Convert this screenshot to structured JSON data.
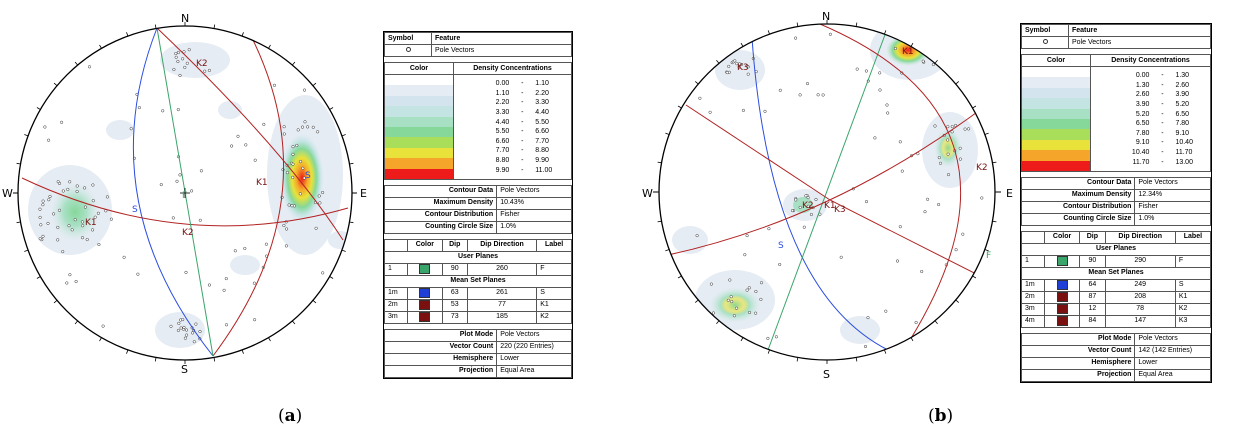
{
  "panels": [
    {
      "id": "a",
      "caption": "a",
      "compass": {
        "n": "N",
        "s": "S",
        "e": "E",
        "w": "W"
      },
      "plane_labels": [
        {
          "text": "K2"
        },
        {
          "text": "K1"
        },
        {
          "text": "S"
        },
        {
          "text": "F"
        },
        {
          "text": "K2"
        },
        {
          "text": "K1"
        },
        {
          "text": "S"
        }
      ],
      "legend": {
        "symbol_header": "Symbol",
        "feature_header": "Feature",
        "feature": "Pole Vectors",
        "color_header": "Color",
        "density_header": "Density Concentrations",
        "density_ranges": [
          [
            "0.00",
            "-",
            "1.10"
          ],
          [
            "1.10",
            "-",
            "2.20"
          ],
          [
            "2.20",
            "-",
            "3.30"
          ],
          [
            "3.30",
            "-",
            "4.40"
          ],
          [
            "4.40",
            "-",
            "5.50"
          ],
          [
            "5.50",
            "-",
            "6.60"
          ],
          [
            "6.60",
            "-",
            "7.70"
          ],
          [
            "7.70",
            "-",
            "8.80"
          ],
          [
            "8.80",
            "-",
            "9.90"
          ],
          [
            "9.90",
            "-",
            "11.00"
          ]
        ],
        "density_colors": [
          "#ffffff",
          "#e6ecf4",
          "#d3e4ee",
          "#c4e4e4",
          "#a8e0c4",
          "#86d89a",
          "#a8de5a",
          "#e8e23a",
          "#f5a62a",
          "#ee1b1b"
        ],
        "info1": [
          {
            "label": "Contour Data",
            "value": "Pole Vectors"
          },
          {
            "label": "Maximum Density",
            "value": "10.43%"
          },
          {
            "label": "Contour Distribution",
            "value": "Fisher"
          },
          {
            "label": "Counting Circle Size",
            "value": "1.0%"
          }
        ],
        "planes_headers": [
          "Color",
          "Dip",
          "Dip Direction",
          "Label"
        ],
        "user_planes_title": "User Planes",
        "user_planes": [
          {
            "id": "1",
            "color": "#3aa56a",
            "dip": "90",
            "dipdir": "260",
            "label": "F"
          }
        ],
        "mean_title": "Mean Set Planes",
        "mean_planes": [
          {
            "id": "1m",
            "color": "#1f3fd6",
            "dip": "63",
            "dipdir": "261",
            "label": "S"
          },
          {
            "id": "2m",
            "color": "#7a1010",
            "dip": "53",
            "dipdir": "77",
            "label": "K1"
          },
          {
            "id": "3m",
            "color": "#7a1010",
            "dip": "73",
            "dipdir": "185",
            "label": "K2"
          }
        ],
        "info2": [
          {
            "label": "Plot Mode",
            "value": "Pole Vectors"
          },
          {
            "label": "Vector Count",
            "value": "220 (220 Entries)"
          },
          {
            "label": "Hemisphere",
            "value": "Lower"
          },
          {
            "label": "Projection",
            "value": "Equal Area"
          }
        ]
      }
    },
    {
      "id": "b",
      "caption": "b",
      "compass": {
        "n": "N",
        "s": "S",
        "e": "E",
        "w": "W"
      },
      "plane_labels": [
        {
          "text": "K3"
        },
        {
          "text": "K1"
        },
        {
          "text": "K2"
        },
        {
          "text": "K2"
        },
        {
          "text": "K1"
        },
        {
          "text": "K3"
        },
        {
          "text": "S"
        },
        {
          "text": "F"
        }
      ],
      "legend": {
        "symbol_header": "Symbol",
        "feature_header": "Feature",
        "feature": "Pole Vectors",
        "color_header": "Color",
        "density_header": "Density Concentrations",
        "density_ranges": [
          [
            "0.00",
            "-",
            "1.30"
          ],
          [
            "1.30",
            "-",
            "2.60"
          ],
          [
            "2.60",
            "-",
            "3.90"
          ],
          [
            "3.90",
            "-",
            "5.20"
          ],
          [
            "5.20",
            "-",
            "6.50"
          ],
          [
            "6.50",
            "-",
            "7.80"
          ],
          [
            "7.80",
            "-",
            "9.10"
          ],
          [
            "9.10",
            "-",
            "10.40"
          ],
          [
            "10.40",
            "-",
            "11.70"
          ],
          [
            "11.70",
            "-",
            "13.00"
          ]
        ],
        "density_colors": [
          "#ffffff",
          "#e6ecf4",
          "#d3e4ee",
          "#c4e4e4",
          "#a8e0c4",
          "#86d89a",
          "#a8de5a",
          "#e8e23a",
          "#f5a62a",
          "#ee1b1b"
        ],
        "info1": [
          {
            "label": "Contour Data",
            "value": "Pole Vectors"
          },
          {
            "label": "Maximum Density",
            "value": "12.34%"
          },
          {
            "label": "Contour Distribution",
            "value": "Fisher"
          },
          {
            "label": "Counting Circle Size",
            "value": "1.0%"
          }
        ],
        "planes_headers": [
          "Color",
          "Dip",
          "Dip Direction",
          "Label"
        ],
        "user_planes_title": "User Planes",
        "user_planes": [
          {
            "id": "1",
            "color": "#3aa56a",
            "dip": "90",
            "dipdir": "290",
            "label": "F"
          }
        ],
        "mean_title": "Mean Set Planes",
        "mean_planes": [
          {
            "id": "1m",
            "color": "#1f3fd6",
            "dip": "64",
            "dipdir": "249",
            "label": "S"
          },
          {
            "id": "2m",
            "color": "#7a1010",
            "dip": "87",
            "dipdir": "208",
            "label": "K1"
          },
          {
            "id": "3m",
            "color": "#7a1010",
            "dip": "12",
            "dipdir": "78",
            "label": "K2"
          },
          {
            "id": "4m",
            "color": "#7a1010",
            "dip": "84",
            "dipdir": "147",
            "label": "K3"
          }
        ],
        "info2": [
          {
            "label": "Plot Mode",
            "value": "Pole Vectors"
          },
          {
            "label": "Vector Count",
            "value": "142 (142 Entries)"
          },
          {
            "label": "Hemisphere",
            "value": "Lower"
          },
          {
            "label": "Projection",
            "value": "Equal Area"
          }
        ]
      }
    }
  ]
}
